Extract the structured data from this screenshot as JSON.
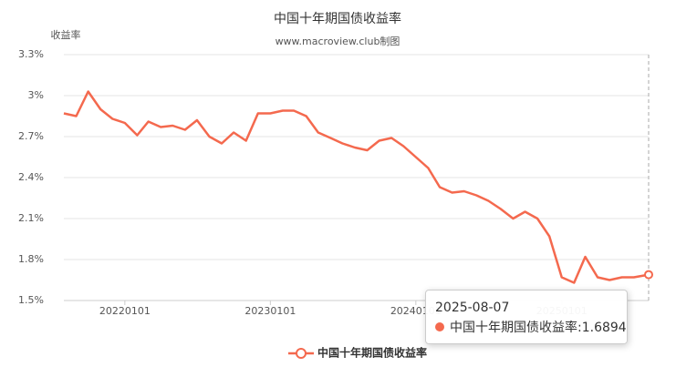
{
  "chart_data": {
    "type": "line",
    "title": "中国十年期国债收益率",
    "subtitle": "www.macroview.club制图",
    "y_label": "收益率",
    "x": [
      "20210801",
      "20210901",
      "20211001",
      "20211101",
      "20211201",
      "20220101",
      "20220201",
      "20220301",
      "20220401",
      "20220501",
      "20220601",
      "20220701",
      "20220801",
      "20220901",
      "20221001",
      "20221101",
      "20221201",
      "20230101",
      "20230201",
      "20230301",
      "20230401",
      "20230501",
      "20230601",
      "20230701",
      "20230801",
      "20230901",
      "20231001",
      "20231101",
      "20231201",
      "20240101",
      "20240201",
      "20240301",
      "20240401",
      "20240501",
      "20240601",
      "20240701",
      "20240801",
      "20240901",
      "20241001",
      "20241101",
      "20241201",
      "20250101",
      "20250201",
      "20250301",
      "20250401",
      "20250501",
      "20250601",
      "20250701",
      "20250807"
    ],
    "series": [
      {
        "name": "中国十年期国债收益率",
        "color": "#f4694e",
        "values": [
          2.87,
          2.85,
          3.03,
          2.9,
          2.83,
          2.8,
          2.71,
          2.81,
          2.77,
          2.78,
          2.75,
          2.82,
          2.7,
          2.65,
          2.73,
          2.67,
          2.87,
          2.87,
          2.89,
          2.89,
          2.85,
          2.73,
          2.69,
          2.65,
          2.62,
          2.6,
          2.67,
          2.69,
          2.63,
          2.55,
          2.47,
          2.33,
          2.29,
          2.3,
          2.27,
          2.23,
          2.17,
          2.1,
          2.15,
          2.1,
          1.97,
          1.67,
          1.63,
          1.82,
          1.67,
          1.65,
          1.67,
          1.67,
          1.6894
        ]
      }
    ],
    "xlim": [
      "20210801",
      "20250807"
    ],
    "xticks": [
      "20220101",
      "20230101",
      "20240101",
      "20250101"
    ],
    "ylim": [
      1.5,
      3.3
    ],
    "yticks": [
      {
        "value": 1.5,
        "label": "1.5%"
      },
      {
        "value": 1.8,
        "label": "1.8%"
      },
      {
        "value": 2.1,
        "label": "2.1%"
      },
      {
        "value": 2.4,
        "label": "2.4%"
      },
      {
        "value": 2.7,
        "label": "2.7%"
      },
      {
        "value": 3,
        "label": "3%"
      },
      {
        "value": 3.3,
        "label": "3.3%"
      }
    ],
    "grid": true,
    "legend": "bottom",
    "tooltip": {
      "date": "2025-08-07",
      "text": "中国十年期国债收益率:1.6894"
    }
  }
}
